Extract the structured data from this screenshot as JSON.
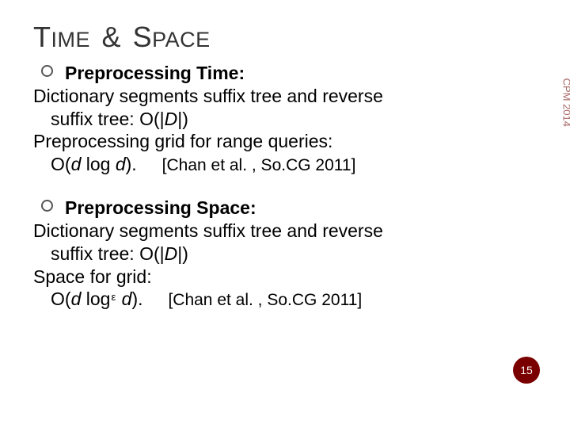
{
  "title": {
    "word1_big": "T",
    "word1_small": "IME",
    "amp": "&",
    "word2_big": "S",
    "word2_small": "PACE"
  },
  "block1": {
    "heading": "Preprocessing Time:",
    "line1": "Dictionary segments suffix tree and reverse",
    "line2_pre": "suffix tree: O(|",
    "line2_var": "D",
    "line2_post": "|)",
    "line3": "Preprocessing grid for range queries:",
    "line4_pre": "O(",
    "line4_var1": "d",
    "line4_mid": " log ",
    "line4_var2": "d",
    "line4_post": ").",
    "cite": "[Chan et al. , So.CG 2011]"
  },
  "block2": {
    "heading": "Preprocessing Space:",
    "line1": "Dictionary segments suffix tree and reverse",
    "line2_pre": "suffix tree: O(|",
    "line2_var": "D",
    "line2_post": "|)",
    "line3": "Space for grid:",
    "line4_pre": "O(",
    "line4_var1": "d",
    "line4_mid": " log",
    "line4_eps": "ε",
    "line4_var2": " d",
    "line4_post": ").",
    "cite": "[Chan et al. , So.CG 2011]"
  },
  "sidelabel": "CPM 2014",
  "page_number": "15",
  "colors": {
    "title": "#333333",
    "body": "#000000",
    "side": "#aa6868",
    "badge_bg": "#7a0000",
    "badge_text": "#ffffff",
    "bg": "#ffffff"
  }
}
